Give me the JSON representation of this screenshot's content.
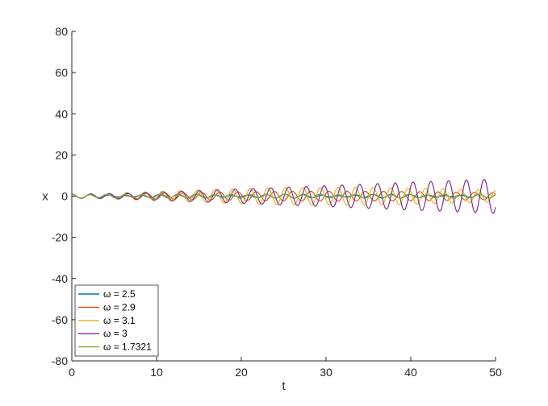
{
  "chart_data": {
    "type": "line",
    "title": "",
    "xlabel": "t",
    "ylabel": "x",
    "xlim": [
      0,
      50
    ],
    "ylim": [
      -80,
      80
    ],
    "xticks": [
      0,
      10,
      20,
      30,
      40,
      50
    ],
    "yticks": [
      -80,
      -60,
      -40,
      -20,
      0,
      20,
      40,
      60,
      80
    ],
    "grid": false,
    "legend_position": "bottom-left",
    "legend_symbol": "ω",
    "series": [
      {
        "name": "ω  =  2.5",
        "omega": 2.5,
        "color": "#0072BD"
      },
      {
        "name": "ω  =  2.9",
        "omega": 2.9,
        "color": "#D95319"
      },
      {
        "name": "ω  =  3.1",
        "omega": 3.1,
        "color": "#EDB120"
      },
      {
        "name": "ω  =  3",
        "omega": 3,
        "color": "#7E2F8E"
      },
      {
        "name": "ω  =  1.7321",
        "omega": 1.7321,
        "color": "#77AC30"
      }
    ],
    "natural_frequency": 3,
    "time_step": 0.025
  }
}
